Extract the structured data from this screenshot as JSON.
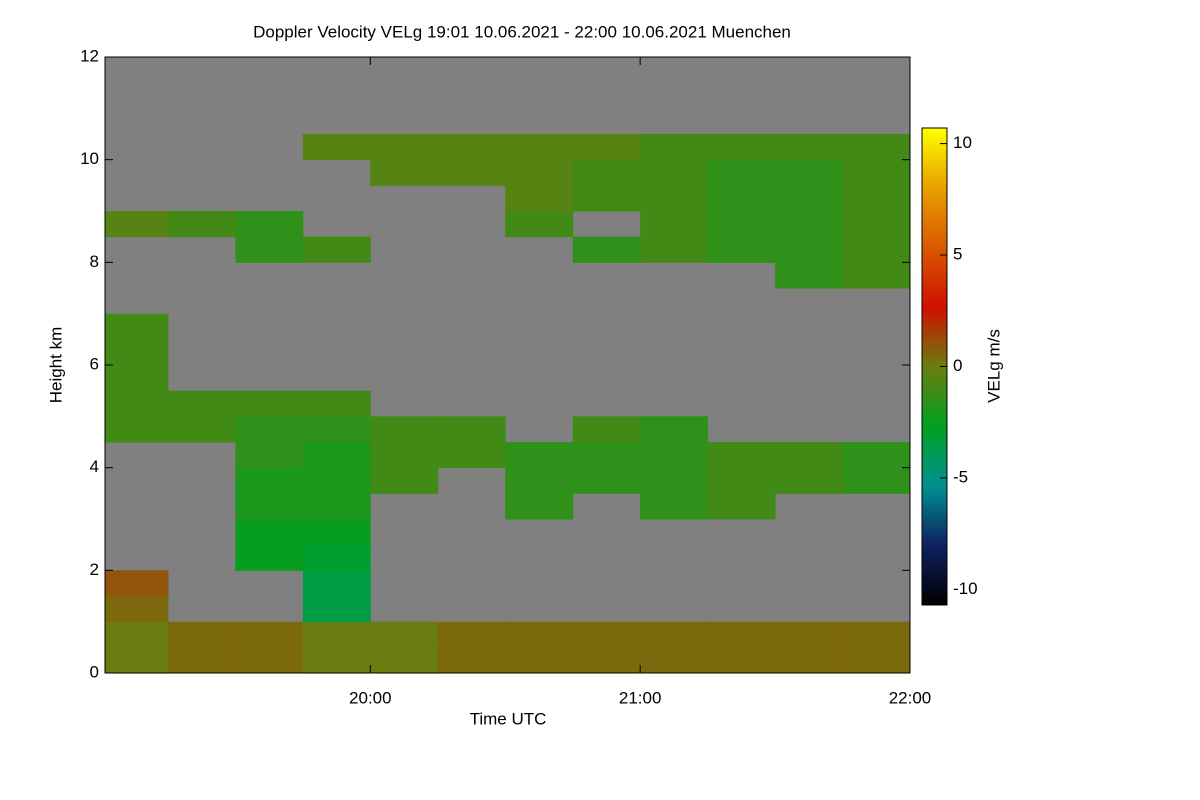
{
  "chart_data": {
    "type": "heatmap",
    "title": "Doppler Velocity VELg   19:01 10.06.2021 - 22:00 10.06.2021 Muenchen",
    "x_label": "Time UTC",
    "y_label": "Height km",
    "colorbar_label": "VELg m/s",
    "xlim": [
      19.0167,
      22.0
    ],
    "xticks": [
      {
        "value": 20,
        "label": "20:00"
      },
      {
        "value": 21,
        "label": "21:00"
      },
      {
        "value": 22,
        "label": "22:00"
      }
    ],
    "ylim": [
      0,
      12
    ],
    "yticks": [
      0,
      2,
      4,
      6,
      8,
      10,
      12
    ],
    "clim": [
      -10.7,
      10.7
    ],
    "cticks": [
      -10,
      -5,
      0,
      5,
      10
    ],
    "colormap": [
      "#000000",
      "#102060",
      "#009090",
      "#00a020",
      "#6a7d10",
      "#d01000",
      "#d85a00",
      "#e8a000",
      "#ffff00"
    ],
    "nodata_color": "#808080",
    "xbins": [
      19.0,
      19.25,
      19.5,
      19.75,
      20.0,
      20.25,
      20.5,
      20.75,
      21.0,
      21.25,
      21.5,
      21.75,
      22.0
    ],
    "ybins": [
      0,
      0.5,
      1,
      1.5,
      2,
      2.5,
      3,
      3.5,
      4,
      4.5,
      5,
      5.5,
      6,
      6.5,
      7,
      7.5,
      8,
      8.5,
      9,
      9.5,
      10,
      10.5,
      11,
      11.5,
      12
    ],
    "z": [
      [
        0,
        0.5,
        0.5,
        0,
        0,
        0.5,
        0.5,
        0.5,
        0.5,
        0.5,
        0.5,
        0.5
      ],
      [
        0,
        0.5,
        0.5,
        0,
        0,
        0.5,
        0.5,
        0.5,
        0.5,
        0.5,
        0.5,
        0.5
      ],
      [
        0.5,
        null,
        null,
        -3.5,
        null,
        null,
        null,
        null,
        null,
        null,
        null,
        null
      ],
      [
        1,
        null,
        null,
        -3.5,
        null,
        null,
        null,
        null,
        null,
        null,
        null,
        null
      ],
      [
        null,
        null,
        -2.5,
        -3,
        null,
        null,
        null,
        null,
        null,
        null,
        null,
        null
      ],
      [
        null,
        null,
        -2.5,
        -2.5,
        null,
        null,
        null,
        null,
        null,
        null,
        null,
        null
      ],
      [
        null,
        null,
        -2,
        -2,
        null,
        null,
        -1.5,
        null,
        -1.5,
        -1,
        null,
        null
      ],
      [
        null,
        null,
        -2,
        -2,
        -1,
        null,
        -1.5,
        -1.5,
        -1.5,
        -1,
        -1,
        -1.5
      ],
      [
        null,
        null,
        -1.5,
        -2,
        -1,
        -1,
        -1.5,
        -1.5,
        -1.5,
        -1,
        -1,
        -1.5
      ],
      [
        -1,
        -1,
        -1.5,
        -1.5,
        -1,
        -1,
        null,
        -1,
        -1.5,
        null,
        null,
        null
      ],
      [
        -1,
        -1,
        -1,
        -1,
        null,
        null,
        null,
        null,
        null,
        null,
        null,
        null
      ],
      [
        -1,
        null,
        null,
        null,
        null,
        null,
        null,
        null,
        null,
        null,
        null,
        null
      ],
      [
        -1,
        null,
        null,
        null,
        null,
        null,
        null,
        null,
        null,
        null,
        null,
        null
      ],
      [
        -1,
        null,
        null,
        null,
        null,
        null,
        null,
        null,
        null,
        null,
        null,
        null
      ],
      [
        null,
        null,
        null,
        null,
        null,
        null,
        null,
        null,
        null,
        null,
        null,
        null
      ],
      [
        null,
        null,
        null,
        null,
        null,
        null,
        null,
        null,
        null,
        null,
        -1.5,
        -1
      ],
      [
        null,
        null,
        -1.5,
        -1,
        null,
        null,
        null,
        -1.5,
        -1,
        -1.5,
        -1.5,
        -1
      ],
      [
        -0.5,
        -1,
        -1.5,
        null,
        null,
        null,
        -1,
        null,
        -1,
        -1.5,
        -1.5,
        -1
      ],
      [
        null,
        null,
        null,
        null,
        null,
        null,
        -0.5,
        -1,
        -1,
        -1.5,
        -1.5,
        -1
      ],
      [
        null,
        null,
        null,
        null,
        -0.5,
        -0.5,
        -0.5,
        -1,
        -1,
        -1.5,
        -1.5,
        -1
      ],
      [
        null,
        null,
        null,
        -0.5,
        -0.5,
        -0.5,
        -0.5,
        -0.5,
        -1,
        -1,
        -1,
        -1
      ],
      [
        null,
        null,
        null,
        null,
        null,
        null,
        null,
        null,
        null,
        null,
        null,
        null
      ],
      [
        null,
        null,
        null,
        null,
        null,
        null,
        null,
        null,
        null,
        null,
        null,
        null
      ],
      [
        null,
        null,
        null,
        null,
        null,
        null,
        null,
        null,
        null,
        null,
        null,
        null
      ]
    ]
  }
}
